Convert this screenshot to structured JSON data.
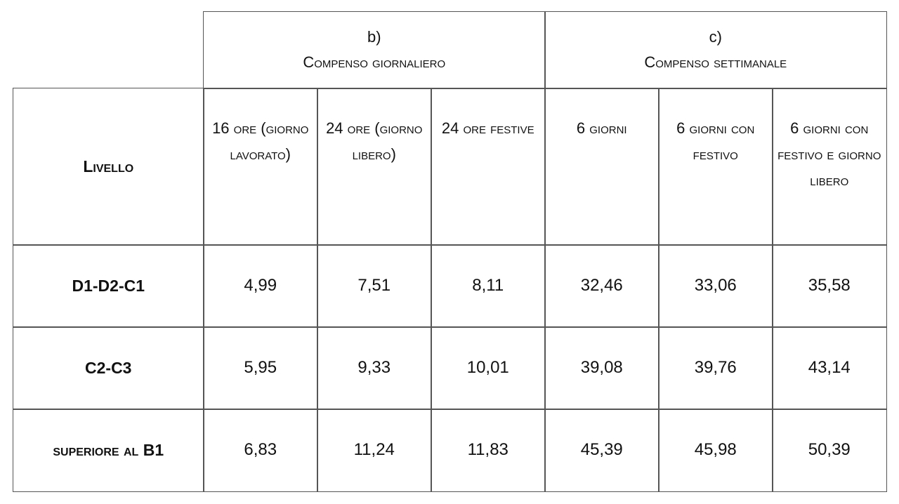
{
  "table": {
    "group_headers": [
      {
        "label": "b)",
        "title": "Compenso giornaliero"
      },
      {
        "label": "c)",
        "title": "Compenso settimanale"
      }
    ],
    "column_headers": [
      "Livello",
      "16 ore (giorno lavorato)",
      "24 ore (giorno libero)",
      "24 ore festive",
      "6 giorni",
      "6 giorni con festivo",
      "6 giorni con festivo e giorno libero"
    ],
    "rows": [
      [
        "D1-D2-C1",
        "4,99",
        "7,51",
        "8,11",
        "32,46",
        "33,06",
        "35,58"
      ],
      [
        "C2-C3",
        "5,95",
        "9,33",
        "10,01",
        "39,08",
        "39,76",
        "43,14"
      ],
      [
        "superiore al B1",
        "6,83",
        "11,24",
        "11,83",
        "45,39",
        "45,98",
        "50,39"
      ]
    ]
  }
}
